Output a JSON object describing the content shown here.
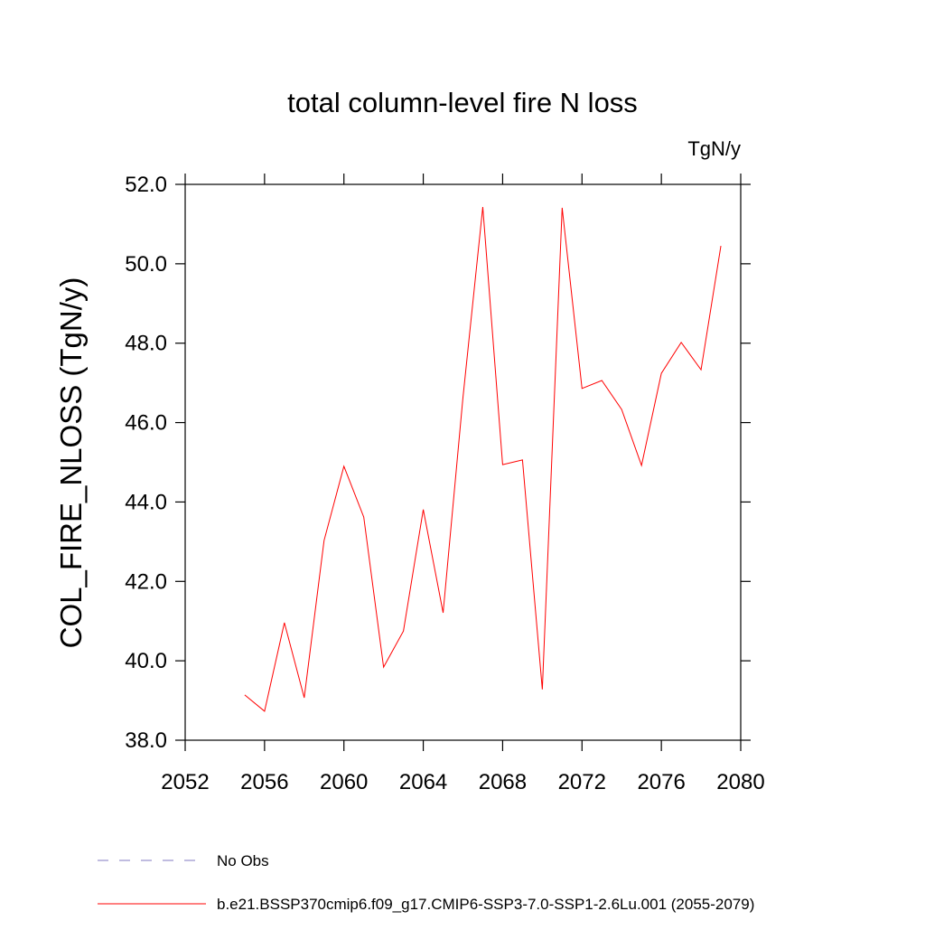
{
  "chart_data": {
    "type": "line",
    "title": "total column-level fire N loss",
    "units": "TgN/y",
    "ylabel": "COL_FIRE_NLOSS  (TgN/y)",
    "x": [
      2055,
      2056,
      2057,
      2058,
      2059,
      2060,
      2061,
      2062,
      2063,
      2064,
      2065,
      2066,
      2067,
      2068,
      2069,
      2070,
      2071,
      2072,
      2073,
      2074,
      2075,
      2076,
      2077,
      2078,
      2079
    ],
    "series": [
      {
        "name": "No Obs",
        "color": "#8078c0",
        "dashed": true,
        "values": [
          null,
          null,
          null,
          null,
          null,
          null,
          null,
          null,
          null,
          null,
          null,
          null,
          null,
          null,
          null,
          null,
          null,
          null,
          null,
          null,
          null,
          null,
          null,
          null,
          null
        ]
      },
      {
        "name": "b.e21.BSSP370cmip6.f09_g17.CMIP6-SSP3-7.0-SSP1-2.6Lu.001 (2055-2079)",
        "color": "#ff0000",
        "dashed": false,
        "values": [
          39.14,
          38.73,
          40.96,
          39.07,
          43.03,
          44.9,
          43.62,
          39.84,
          40.75,
          43.81,
          41.21,
          46.63,
          51.43,
          44.94,
          45.06,
          39.28,
          51.41,
          46.86,
          47.06,
          46.33,
          44.92,
          47.24,
          48.02,
          47.33,
          50.45
        ]
      }
    ],
    "xlim": [
      2052,
      2080
    ],
    "xticks": [
      2052,
      2056,
      2060,
      2064,
      2068,
      2072,
      2076,
      2080
    ],
    "ylim": [
      38,
      52
    ],
    "yticks": [
      {
        "value": 38,
        "label": "38.0"
      },
      {
        "value": 40,
        "label": "40.0"
      },
      {
        "value": 42,
        "label": "42.0"
      },
      {
        "value": 44,
        "label": "44.0"
      },
      {
        "value": 46,
        "label": "46.0"
      },
      {
        "value": 48,
        "label": "48.0"
      },
      {
        "value": 50,
        "label": "50.0"
      },
      {
        "value": 52,
        "label": "52.0"
      }
    ]
  }
}
